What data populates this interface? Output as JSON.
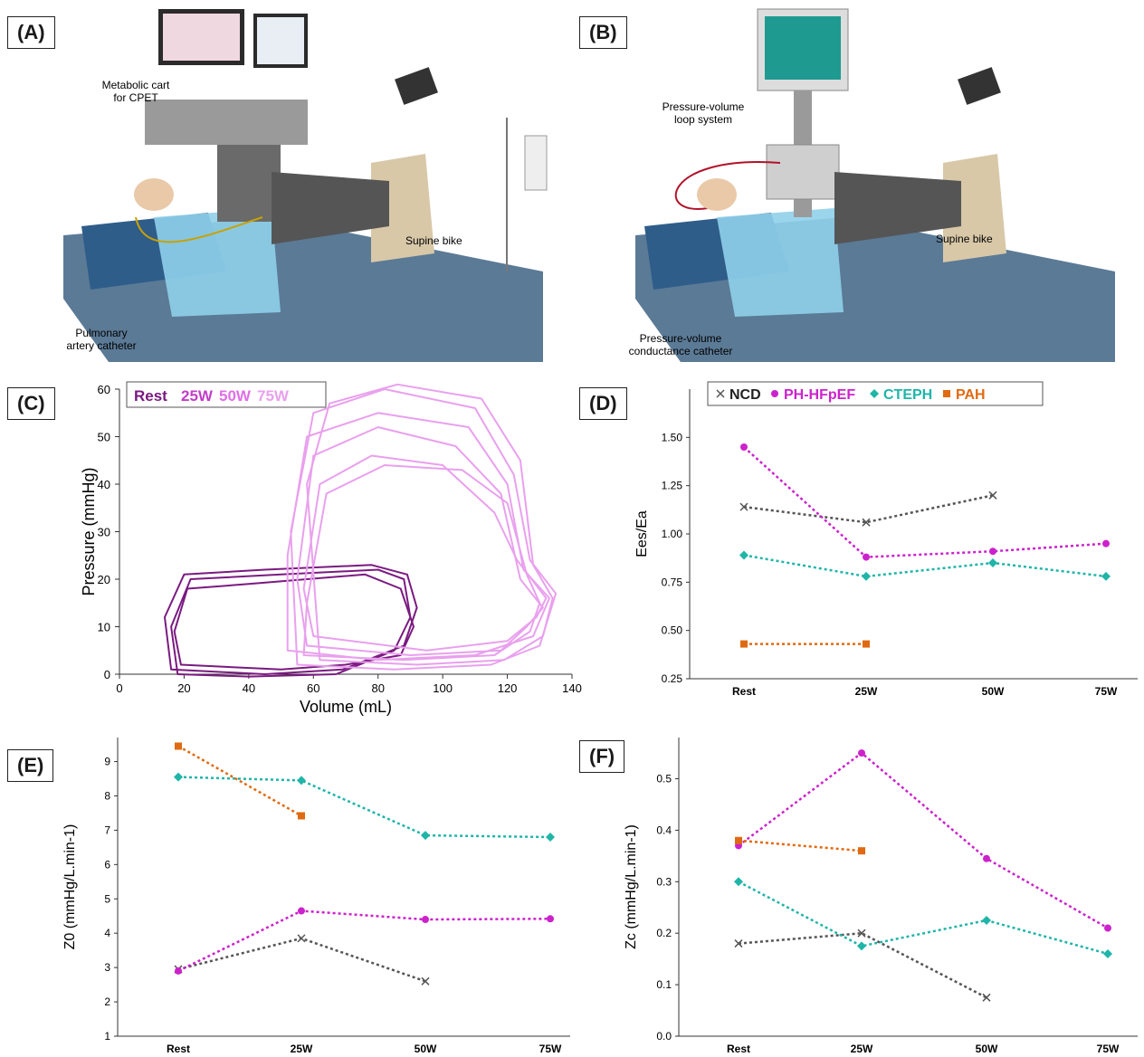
{
  "panels": {
    "A": {
      "label": "(A)",
      "annotations": [
        "Metabolic cart",
        "for CPET",
        "Supine bike",
        "Pulmonary",
        "artery catheter"
      ]
    },
    "B": {
      "label": "(B)",
      "annotations": [
        "Pressure-volume",
        "loop system",
        "Supine bike",
        "Pressure-volume",
        "conductance catheter"
      ]
    },
    "C": {
      "label": "(C)"
    },
    "D": {
      "label": "(D)"
    },
    "E": {
      "label": "(E)"
    },
    "F": {
      "label": "(F)"
    }
  },
  "colors": {
    "rest": "#7a1a80",
    "w25": "#c23dc8",
    "w50": "#e06ee6",
    "w75": "#e9a0ee",
    "NCD": "#555555",
    "PH-HFpEF": "#cc22cc",
    "CTEPH": "#1fb5a8",
    "PAH": "#e06a12"
  },
  "chart_data": [
    {
      "panel": "C",
      "type": "line",
      "xlabel": "Volume (mL)",
      "ylabel": "Pressure (mmHg)",
      "xlim": [
        0,
        140
      ],
      "ylim": [
        0,
        60
      ],
      "xticks": [
        0,
        20,
        40,
        60,
        80,
        100,
        120,
        140
      ],
      "yticks": [
        0,
        10,
        20,
        30,
        40,
        50,
        60
      ],
      "legend": [
        "Rest",
        "25W",
        "50W",
        "75W"
      ],
      "legend_position": "top-left",
      "series": [
        {
          "name": "Rest",
          "loops": [
            [
              [
                18,
                0
              ],
              [
                40,
                -0.5
              ],
              [
                67,
                0
              ],
              [
                85,
                5
              ],
              [
                90,
                12
              ],
              [
                88,
                20
              ],
              [
                80,
                22
              ],
              [
                50,
                21
              ],
              [
                22,
                20
              ],
              [
                16,
                10
              ],
              [
                18,
                0
              ]
            ],
            [
              [
                16,
                1
              ],
              [
                45,
                0
              ],
              [
                69,
                1
              ],
              [
                88,
                6
              ],
              [
                92,
                14
              ],
              [
                89,
                21
              ],
              [
                78,
                23
              ],
              [
                45,
                22
              ],
              [
                20,
                21
              ],
              [
                14,
                12
              ],
              [
                16,
                1
              ]
            ],
            [
              [
                19,
                2
              ],
              [
                50,
                1
              ],
              [
                70,
                2
              ],
              [
                87,
                4
              ],
              [
                91,
                10
              ],
              [
                87,
                18
              ],
              [
                76,
                21
              ],
              [
                40,
                19
              ],
              [
                21,
                18
              ],
              [
                17,
                9
              ],
              [
                19,
                2
              ]
            ]
          ]
        },
        {
          "name": "75W",
          "loops": [
            [
              [
                52,
                5
              ],
              [
                80,
                3
              ],
              [
                110,
                4
              ],
              [
                128,
                8
              ],
              [
                133,
                16
              ],
              [
                125,
                22
              ],
              [
                120,
                40
              ],
              [
                108,
                52
              ],
              [
                80,
                55
              ],
              [
                58,
                50
              ],
              [
                52,
                25
              ],
              [
                52,
                5
              ]
            ],
            [
              [
                55,
                2
              ],
              [
                85,
                1
              ],
              [
                115,
                2
              ],
              [
                130,
                6
              ],
              [
                135,
                17
              ],
              [
                127,
                24
              ],
              [
                122,
                42
              ],
              [
                110,
                56
              ],
              [
                82,
                60
              ],
              [
                60,
                55
              ],
              [
                53,
                30
              ],
              [
                55,
                2
              ]
            ],
            [
              [
                58,
                6
              ],
              [
                90,
                4
              ],
              [
                118,
                5
              ],
              [
                126,
                10
              ],
              [
                131,
                14
              ],
              [
                124,
                20
              ],
              [
                118,
                38
              ],
              [
                104,
                48
              ],
              [
                80,
                52
              ],
              [
                60,
                46
              ],
              [
                55,
                20
              ],
              [
                58,
                6
              ]
            ],
            [
              [
                60,
                8
              ],
              [
                95,
                5
              ],
              [
                120,
                7
              ],
              [
                129,
                12
              ],
              [
                132,
                16
              ],
              [
                123,
                24
              ],
              [
                116,
                34
              ],
              [
                100,
                44
              ],
              [
                78,
                46
              ],
              [
                62,
                40
              ],
              [
                57,
                18
              ],
              [
                60,
                8
              ]
            ],
            [
              [
                57,
                4
              ],
              [
                88,
                3
              ],
              [
                116,
                4
              ],
              [
                127,
                9
              ],
              [
                130,
                15
              ],
              [
                126,
                21
              ],
              [
                120,
                36
              ],
              [
                106,
                43
              ],
              [
                82,
                44
              ],
              [
                64,
                38
              ],
              [
                58,
                15
              ],
              [
                57,
                4
              ]
            ],
            [
              [
                62,
                3
              ],
              [
                92,
                2
              ],
              [
                119,
                3
              ],
              [
                131,
                8
              ],
              [
                134,
                16
              ],
              [
                128,
                23
              ],
              [
                124,
                45
              ],
              [
                112,
                58
              ],
              [
                86,
                61
              ],
              [
                65,
                57
              ],
              [
                58,
                40
              ],
              [
                62,
                3
              ]
            ]
          ]
        }
      ]
    },
    {
      "panel": "D",
      "type": "line",
      "ylabel": "Ees/Ea",
      "categories": [
        "Rest",
        "25W",
        "50W",
        "75W"
      ],
      "ylim": [
        0.25,
        1.75
      ],
      "yticks": [
        "0.25",
        "0.50",
        "0.75",
        "1.00",
        "1.25",
        "1.50"
      ],
      "legend_position": "top",
      "series": [
        {
          "name": "NCD",
          "values": [
            1.14,
            1.06,
            1.2,
            null
          ]
        },
        {
          "name": "PH-HFpEF",
          "values": [
            1.45,
            0.88,
            0.91,
            0.95
          ]
        },
        {
          "name": "CTEPH",
          "values": [
            0.89,
            0.78,
            0.85,
            0.78
          ]
        },
        {
          "name": "PAH",
          "values": [
            0.43,
            0.43,
            null,
            null
          ]
        }
      ]
    },
    {
      "panel": "E",
      "type": "line",
      "ylabel": "Z0 (mmHg/L.min-1)",
      "categories": [
        "Rest",
        "25W",
        "50W",
        "75W"
      ],
      "ylim": [
        1,
        9.7
      ],
      "yticks": [
        "1",
        "2",
        "3",
        "4",
        "5",
        "6",
        "7",
        "8",
        "9"
      ],
      "series": [
        {
          "name": "NCD",
          "values": [
            2.95,
            3.85,
            2.6,
            null
          ]
        },
        {
          "name": "PH-HFpEF",
          "values": [
            2.9,
            4.65,
            4.4,
            4.42
          ]
        },
        {
          "name": "CTEPH",
          "values": [
            8.55,
            8.45,
            6.85,
            6.8
          ]
        },
        {
          "name": "PAH",
          "values": [
            9.45,
            7.42,
            null,
            null
          ]
        }
      ]
    },
    {
      "panel": "F",
      "type": "line",
      "ylabel": "Zc (mmHg/L.min-1)",
      "categories": [
        "Rest",
        "25W",
        "50W",
        "75W"
      ],
      "ylim": [
        0,
        0.58
      ],
      "yticks": [
        "0.0",
        "0.1",
        "0.2",
        "0.3",
        "0.4",
        "0.5"
      ],
      "series": [
        {
          "name": "NCD",
          "values": [
            0.18,
            0.2,
            0.075,
            null
          ]
        },
        {
          "name": "PH-HFpEF",
          "values": [
            0.37,
            0.55,
            0.345,
            0.21
          ]
        },
        {
          "name": "CTEPH",
          "values": [
            0.3,
            0.175,
            0.225,
            0.16
          ]
        },
        {
          "name": "PAH",
          "values": [
            0.38,
            0.36,
            null,
            null
          ]
        }
      ]
    }
  ]
}
